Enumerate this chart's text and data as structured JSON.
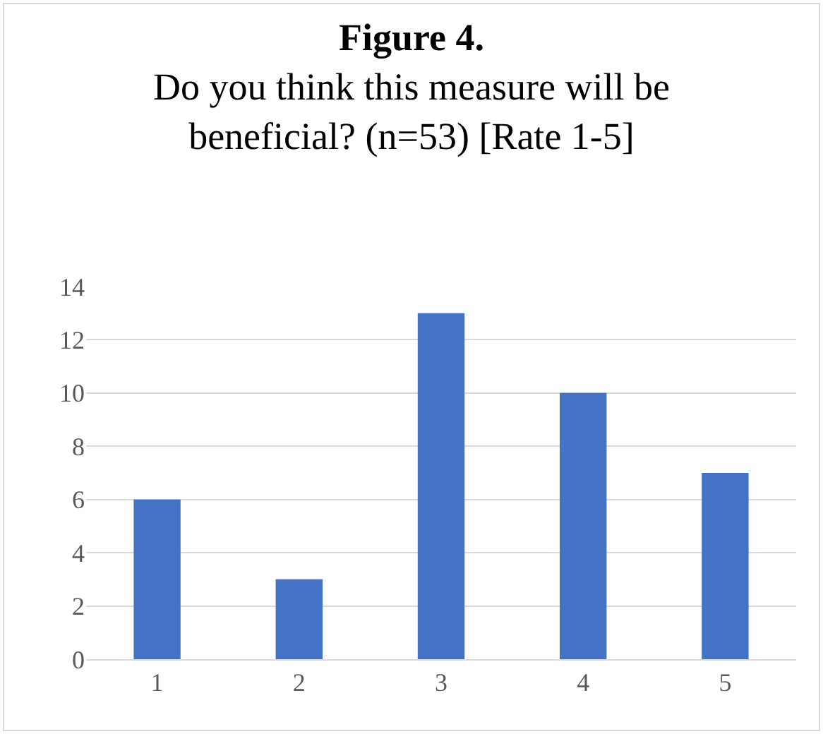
{
  "chart_data": {
    "type": "bar",
    "title": "Figure 4.",
    "subtitle": "Do you think this measure will be beneficial? (n=53) [Rate 1-5]",
    "categories": [
      "1",
      "2",
      "3",
      "4",
      "5"
    ],
    "values": [
      6,
      3,
      13,
      10,
      7
    ],
    "color": "#4472c4",
    "ylim": [
      0,
      14
    ],
    "yticks": [
      0,
      2,
      4,
      6,
      8,
      10,
      12,
      14
    ],
    "grid": "y"
  }
}
